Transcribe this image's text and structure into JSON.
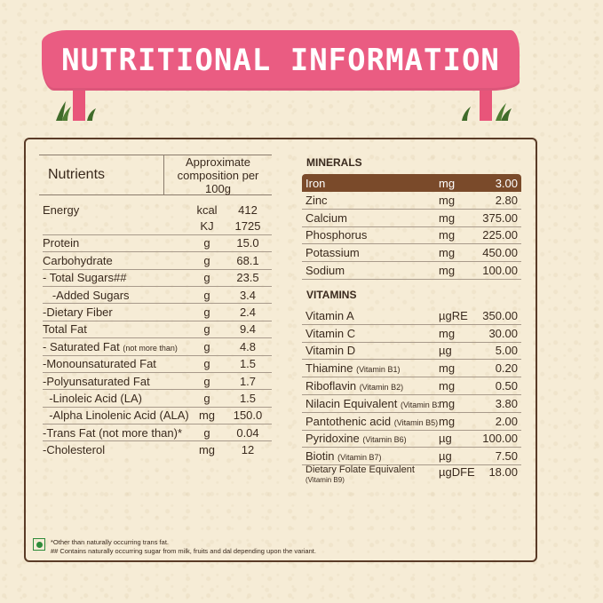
{
  "title": "NUTRITIONAL INFORMATION",
  "left_table": {
    "header_nutrients": "Nutrients",
    "header_composition": "Approximate composition per 100g",
    "rows": [
      {
        "name": "Energy",
        "unit": "kcal",
        "value": "412",
        "line": false
      },
      {
        "name": "",
        "unit": "KJ",
        "value": "1725",
        "line": true
      },
      {
        "name": "Protein",
        "unit": "g",
        "value": "15.0",
        "line": true
      },
      {
        "name": "Carbohydrate",
        "unit": "g",
        "value": "68.1",
        "line": true
      },
      {
        "name": "- Total Sugars##",
        "unit": "g",
        "value": "23.5",
        "line": true
      },
      {
        "name": "   -Added Sugars",
        "unit": "g",
        "value": "3.4",
        "line": true
      },
      {
        "name": "-Dietary Fiber",
        "unit": "g",
        "value": "2.4",
        "line": true
      },
      {
        "name": "Total Fat",
        "unit": "g",
        "value": "9.4",
        "line": true
      },
      {
        "name": "- Saturated Fat",
        "note": "(not more than)",
        "unit": "g",
        "value": "4.8",
        "line": true
      },
      {
        "name": "-Monounsaturated Fat",
        "unit": "g",
        "value": "1.5",
        "line": true
      },
      {
        "name": "-Polyunsaturated Fat",
        "unit": "g",
        "value": "1.7",
        "line": true
      },
      {
        "name": "  -Linoleic Acid (LA)",
        "unit": "g",
        "value": "1.5",
        "line": true
      },
      {
        "name": "  -Alpha Linolenic Acid (ALA)",
        "unit": "mg",
        "value": "150.0",
        "line": true
      },
      {
        "name": "-Trans Fat (not more than)*",
        "unit": "g",
        "value": "0.04",
        "line": true
      },
      {
        "name": "-Cholesterol",
        "unit": "mg",
        "value": "12",
        "line": false
      }
    ]
  },
  "minerals": {
    "heading": "MINERALS",
    "rows": [
      {
        "name": "Iron",
        "unit": "mg",
        "value": "3.00"
      },
      {
        "name": "Zinc",
        "unit": "mg",
        "value": "2.80"
      },
      {
        "name": "Calcium",
        "unit": "mg",
        "value": "375.00"
      },
      {
        "name": "Phosphorus",
        "unit": "mg",
        "value": "225.00"
      },
      {
        "name": "Potassium",
        "unit": "mg",
        "value": "450.00"
      },
      {
        "name": "Sodium",
        "unit": "mg",
        "value": "100.00"
      }
    ]
  },
  "vitamins": {
    "heading": "VITAMINS",
    "rows": [
      {
        "name": "Vitamin A",
        "note": "",
        "unit": "µgRE",
        "value": "350.00"
      },
      {
        "name": "Vitamin C",
        "note": "",
        "unit": "mg",
        "value": "30.00"
      },
      {
        "name": "Vitamin D",
        "note": "",
        "unit": "µg",
        "value": "5.00"
      },
      {
        "name": "Thiamine",
        "note": "(Vitamin B1)",
        "unit": "mg",
        "value": "0.20"
      },
      {
        "name": "Riboflavin",
        "note": "(Vitamin B2)",
        "unit": "mg",
        "value": "0.50"
      },
      {
        "name": "Nilacin Equivalent",
        "note": "(Vitamin B3)",
        "unit": "mg",
        "value": "3.80"
      },
      {
        "name": "Pantothenic acid",
        "note": "(Vitamin B5)",
        "unit": "mg",
        "value": "2.00"
      },
      {
        "name": "Pyridoxine",
        "note": "(Vitamin B6)",
        "unit": "µg",
        "value": "100.00"
      },
      {
        "name": "Biotin",
        "note": "(Vitamin B7)",
        "unit": "µg",
        "value": "7.50"
      }
    ],
    "last_row": {
      "name": "Dietary Folate Equivalent",
      "note": "(Vitamin B9)",
      "unit": "µgDFE",
      "value": "18.00"
    }
  },
  "footnotes": {
    "line1": "*Other than naturally occurring trans fat.",
    "line2": "## Contains naturally occurring sugar from milk, fruits and dal depending upon the variant."
  },
  "colors": {
    "banner": "#ea5c82",
    "highlight": "#7a4a2a",
    "border": "#5a3b27",
    "veg": "#2e8b3a"
  }
}
